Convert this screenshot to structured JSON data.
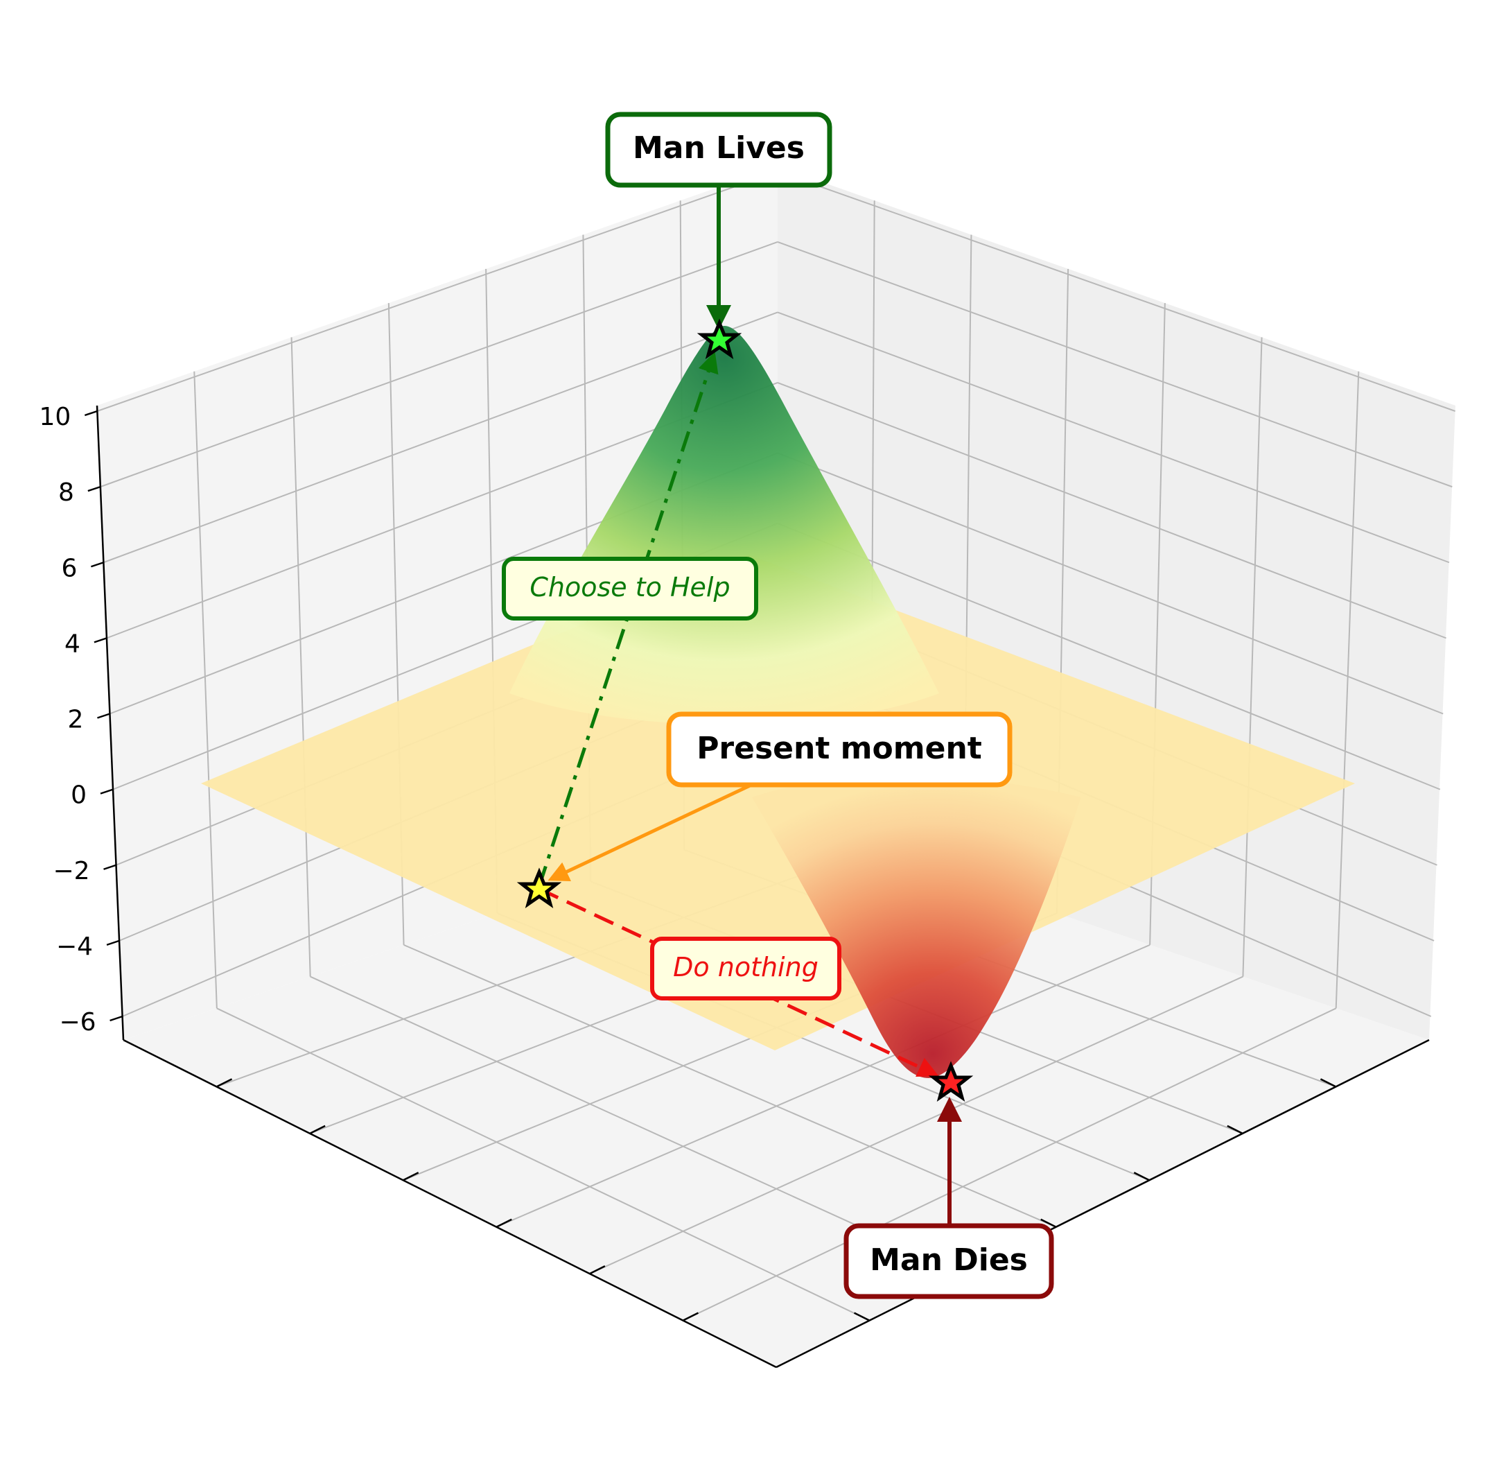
{
  "chart_data": {
    "type": "surface",
    "title": "",
    "xlabel": "",
    "ylabel": "",
    "zlabel": "",
    "z_ticks": [
      "10",
      "8",
      "6",
      "4",
      "2",
      "0",
      "−2",
      "−4",
      "−6"
    ],
    "z_tick_values": [
      10,
      8,
      6,
      4,
      2,
      0,
      -2,
      -4,
      -6
    ],
    "zlim": [
      -7,
      10
    ],
    "grid": true,
    "surface": {
      "description_free": true,
      "colormap": "RdYlGn",
      "flat_level": 0,
      "peak": {
        "height": 10
      },
      "valley": {
        "depth": -7
      }
    },
    "annotations": {
      "top": {
        "label": "Man Lives",
        "z": 10,
        "color": "#0b6b0b"
      },
      "bottom": {
        "label": "Man Dies",
        "z": -7,
        "color": "#8b0a0a"
      },
      "present": {
        "label": "Present moment",
        "z": -2.5,
        "color": "#ff9911"
      },
      "help_path": {
        "label": "Choose to Help",
        "color": "#0a7a0a"
      },
      "nothing_path": {
        "label": "Do nothing",
        "color": "#ee1111"
      }
    }
  }
}
